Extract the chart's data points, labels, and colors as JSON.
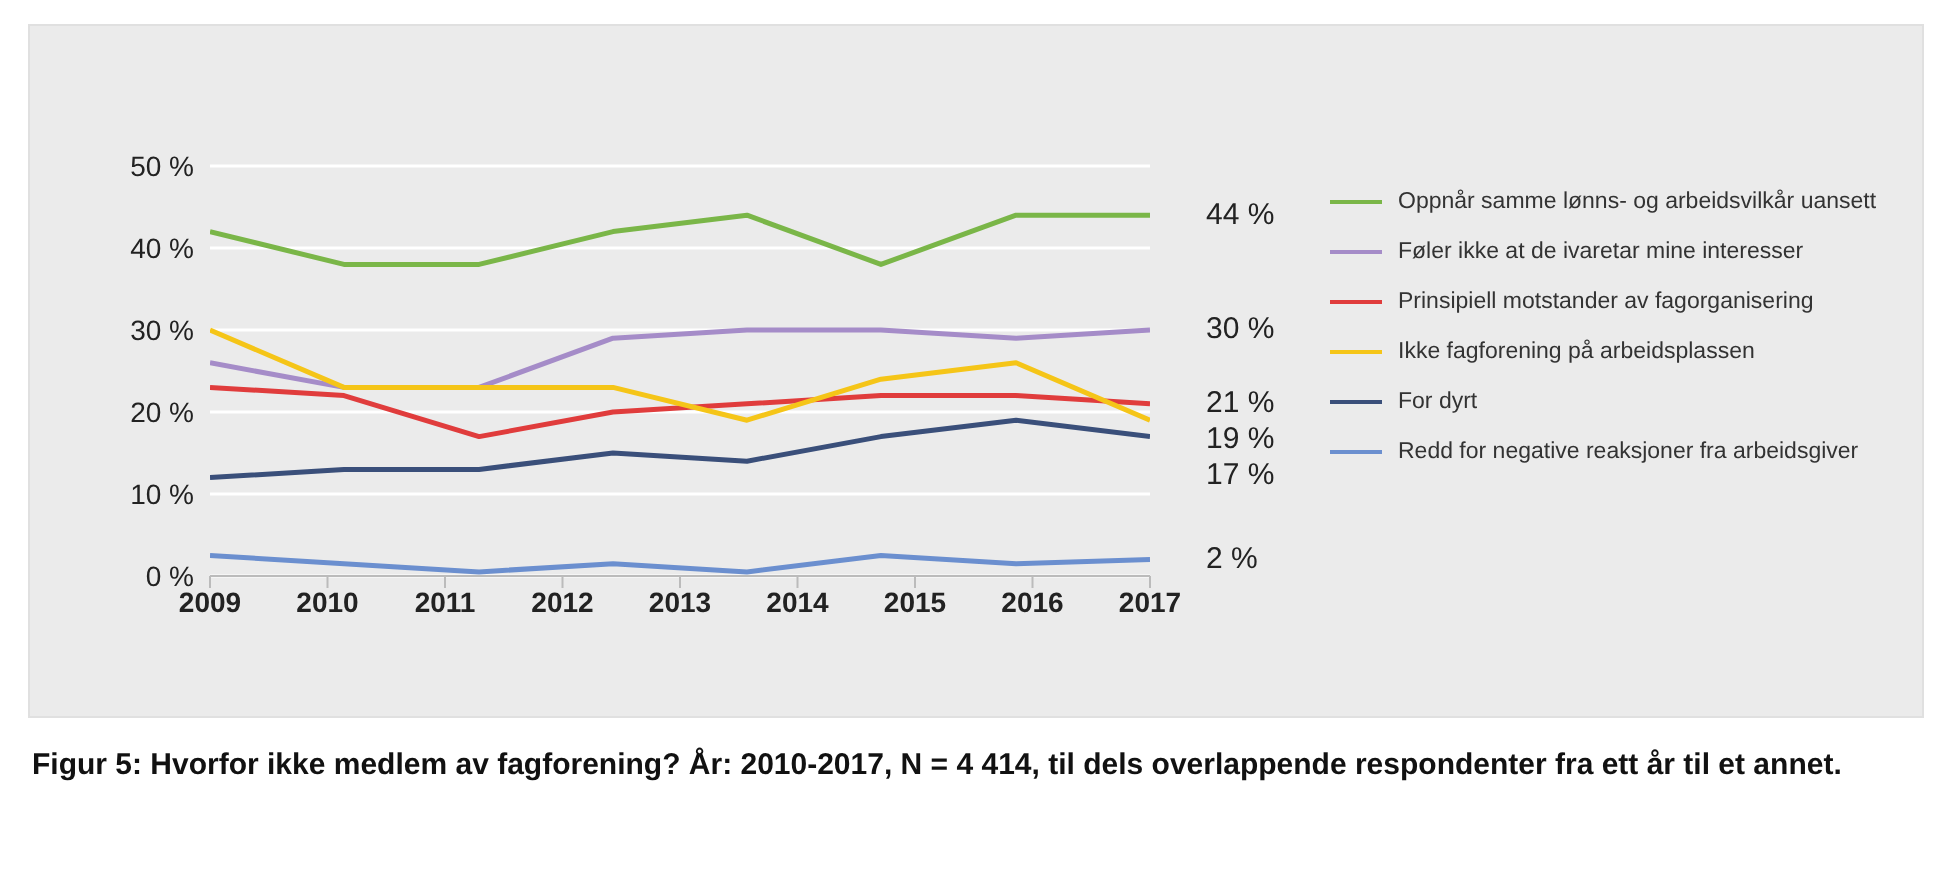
{
  "chart_data": {
    "type": "line",
    "x": [
      2009,
      2010.14,
      2011.29,
      2012.43,
      2013.57,
      2014.71,
      2015.86,
      2017
    ],
    "xlim": [
      2009,
      2017
    ],
    "xticks": [
      2009,
      2010,
      2011,
      2012,
      2013,
      2014,
      2015,
      2016,
      2017
    ],
    "ylim": [
      0,
      50
    ],
    "yticks": [
      {
        "value": 0,
        "label": "0 %"
      },
      {
        "value": 10,
        "label": "10 %"
      },
      {
        "value": 20,
        "label": "20 %"
      },
      {
        "value": 30,
        "label": "30 %"
      },
      {
        "value": 40,
        "label": "40 %"
      },
      {
        "value": 50,
        "label": "50 %"
      }
    ],
    "grid": "y",
    "legend": "right",
    "marker": "none",
    "series": [
      {
        "name": "Oppnår samme lønns- og arbeidsvilkår uansett",
        "color": "#7ab648",
        "values": [
          42,
          38,
          38,
          42,
          44,
          38,
          44,
          44
        ],
        "value_labels": [
          null,
          null,
          null,
          null,
          null,
          null,
          null,
          "44 %"
        ]
      },
      {
        "name": "Føler ikke at de ivaretar mine interesser",
        "color": "#a58cc8",
        "values": [
          26,
          23,
          23,
          29,
          30,
          30,
          29,
          30
        ],
        "value_labels": [
          null,
          null,
          null,
          null,
          null,
          null,
          null,
          "30 %"
        ]
      },
      {
        "name": "Prinsipiell motstander av fagorganisering",
        "color": "#e03c3c",
        "values": [
          23,
          22,
          17,
          20,
          21,
          22,
          22,
          21
        ],
        "value_labels": [
          null,
          null,
          null,
          null,
          null,
          null,
          null,
          "21 %"
        ]
      },
      {
        "name": "Ikke fagforening på arbeidsplassen",
        "color": "#f5c518",
        "values": [
          30,
          23,
          23,
          23,
          19,
          24,
          26,
          19
        ],
        "value_labels": [
          null,
          null,
          null,
          null,
          null,
          null,
          null,
          "19 %"
        ]
      },
      {
        "name": "For dyrt",
        "color": "#3a4f7a",
        "values": [
          12,
          13,
          13,
          15,
          14,
          17,
          19,
          17
        ],
        "value_labels": [
          null,
          null,
          null,
          null,
          null,
          null,
          null,
          "17 %"
        ]
      },
      {
        "name": "Redd for negative reaksjoner fra arbeidsgiver",
        "color": "#6b8fcf",
        "values": [
          2.5,
          1.5,
          0.5,
          1.5,
          0.5,
          2.5,
          1.5,
          2
        ],
        "value_labels": [
          null,
          null,
          null,
          null,
          null,
          null,
          null,
          "2 %"
        ]
      }
    ],
    "annotations": [
      "Figur 5: Hvorfor ikke medlem av fagforening? År: 2010-2017, N = 4 414, til dels overlappende respondenter fra ett år til et annet."
    ]
  }
}
